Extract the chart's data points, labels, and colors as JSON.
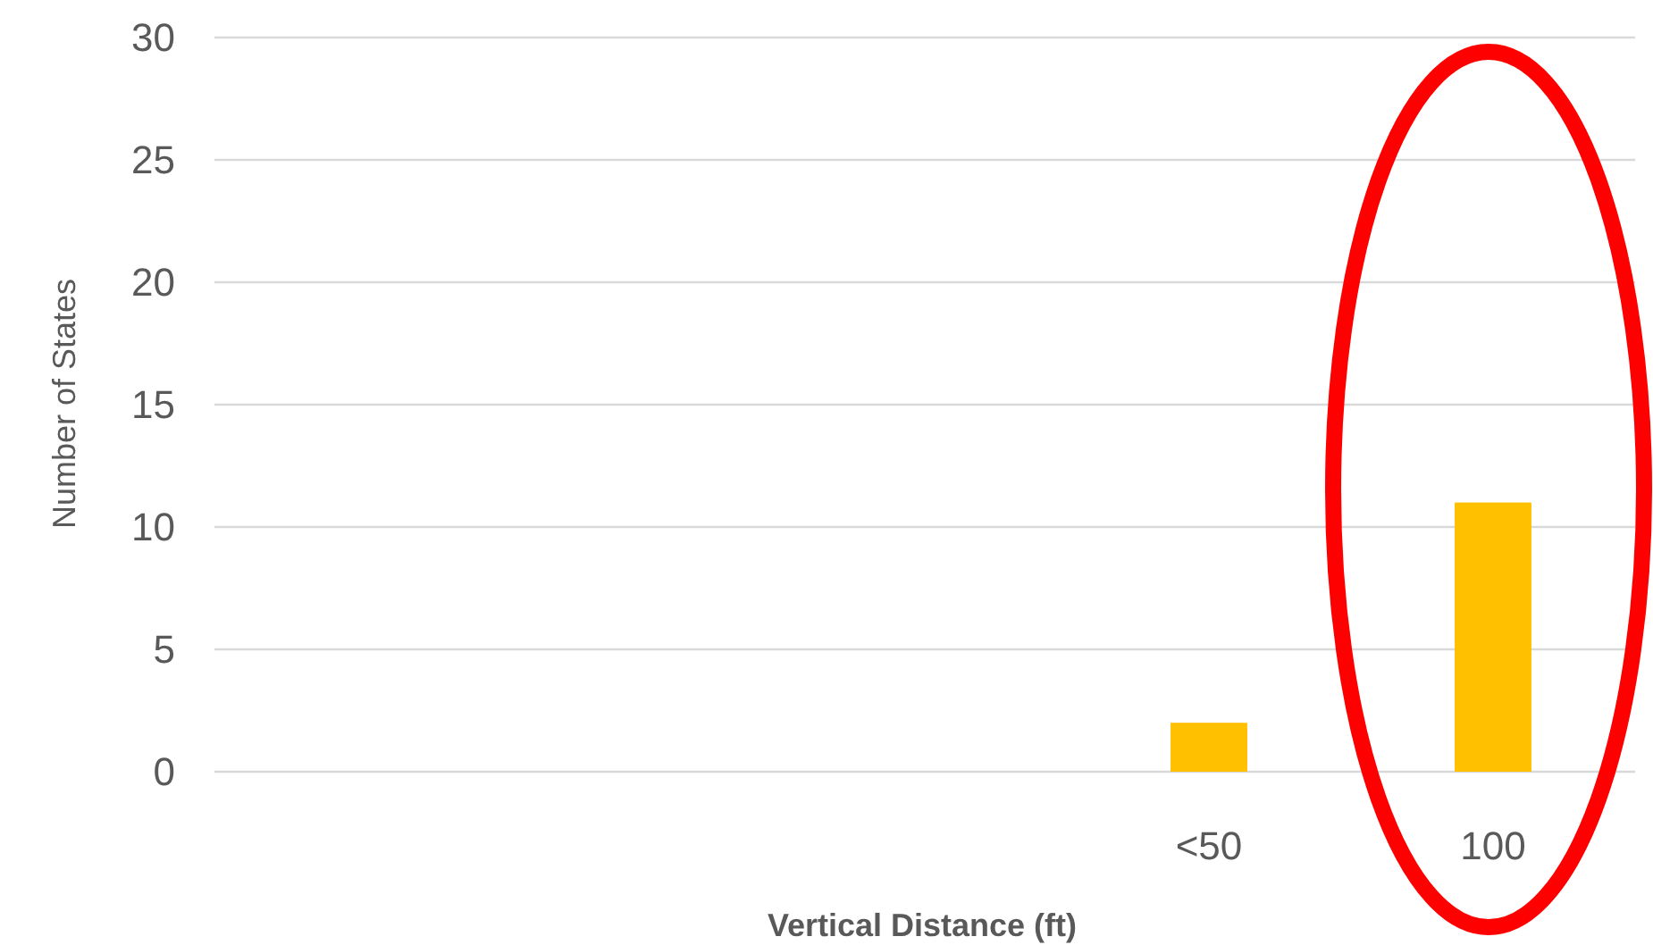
{
  "chart_data": {
    "type": "bar",
    "xlabel": "Vertical Distance (ft)",
    "ylabel": "Number of States",
    "categories": [
      null,
      null,
      null,
      "<50",
      "100"
    ],
    "values": [
      null,
      null,
      null,
      2,
      11
    ],
    "color": "#ffc000",
    "ylim": [
      0,
      30
    ],
    "yticks": [
      0,
      5,
      10,
      15,
      20,
      25,
      30
    ],
    "grid": "y"
  }
}
